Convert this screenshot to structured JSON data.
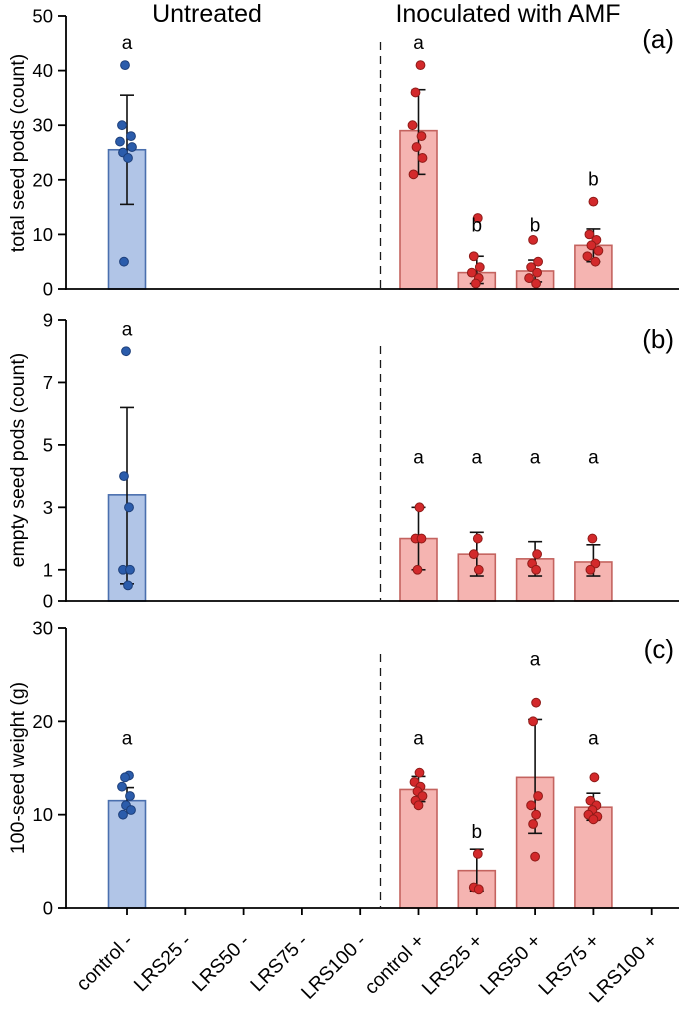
{
  "figure": {
    "headers": [
      {
        "label": "Untreated",
        "color": "#3c69cd"
      },
      {
        "label": "Inoculated with AMF",
        "color": "#e93b31"
      }
    ],
    "categories": [
      "control -",
      "LRS25 -",
      "LRS50 -",
      "LRS75 -",
      "LRS100 -",
      "control +",
      "LRS25 +",
      "LRS50 +",
      "LRS75 +",
      "LRS100 +"
    ],
    "divider_between": [
      "LRS100 -",
      "control +"
    ],
    "colors": {
      "untreated_fill": "#b1c5e7",
      "untreated_edge": "#4a6fae",
      "untreated_point": "#2b5cab",
      "untreated_point_edge": "#1d3f7a",
      "inoculated_fill": "#f5b4b1",
      "inoculated_edge": "#c4635f",
      "inoculated_point": "#d3292b",
      "inoculated_point_edge": "#8f1b18",
      "axis": "#000000",
      "error_bar": "#111111"
    }
  },
  "chart_data": [
    {
      "type": "bar",
      "panel_label": "(a)",
      "ylabel": "total seed pods (count)",
      "xlabel": "",
      "ylim": [
        0,
        50
      ],
      "yticks": [
        0,
        10,
        20,
        30,
        40,
        50
      ],
      "grid": false,
      "bars": [
        {
          "category": "control -",
          "group": "untreated",
          "mean": 25.5,
          "err_low": 15.5,
          "err_high": 35.5,
          "letter": "a",
          "letter_y": 44,
          "points": [
            [
              41,
              -2
            ],
            [
              30,
              -5
            ],
            [
              28,
              4
            ],
            [
              27,
              -7
            ],
            [
              26,
              5
            ],
            [
              25,
              -4
            ],
            [
              24,
              1
            ],
            [
              5,
              -3
            ]
          ]
        },
        {
          "category": "control +",
          "group": "inoculated",
          "mean": 29,
          "err_low": 21,
          "err_high": 36.5,
          "letter": "a",
          "letter_y": 44,
          "points": [
            [
              41,
              2
            ],
            [
              36,
              -3
            ],
            [
              30,
              -6
            ],
            [
              28,
              3
            ],
            [
              26,
              -2
            ],
            [
              24,
              4
            ],
            [
              21,
              -5
            ]
          ]
        },
        {
          "category": "LRS25 +",
          "group": "inoculated",
          "mean": 3,
          "err_low": 1,
          "err_high": 6,
          "letter": "b",
          "letter_y": 10.5,
          "points": [
            [
              13,
              1
            ],
            [
              6,
              -3
            ],
            [
              4,
              3
            ],
            [
              3,
              -5
            ],
            [
              2,
              2
            ],
            [
              1,
              -1
            ]
          ]
        },
        {
          "category": "LRS50 +",
          "group": "inoculated",
          "mean": 3.3,
          "err_low": 1.3,
          "err_high": 5.3,
          "letter": "b",
          "letter_y": 10.5,
          "points": [
            [
              9,
              -2
            ],
            [
              5,
              3
            ],
            [
              4,
              -4
            ],
            [
              3,
              2
            ],
            [
              2,
              -6
            ],
            [
              1,
              1
            ]
          ]
        },
        {
          "category": "LRS75 +",
          "group": "inoculated",
          "mean": 8,
          "err_low": 5,
          "err_high": 11,
          "letter": "b",
          "letter_y": 19,
          "points": [
            [
              16,
              0
            ],
            [
              10,
              -4
            ],
            [
              9,
              3
            ],
            [
              8,
              -2
            ],
            [
              7,
              5
            ],
            [
              6,
              -6
            ],
            [
              5,
              2
            ]
          ]
        }
      ]
    },
    {
      "type": "bar",
      "panel_label": "(b)",
      "ylabel": "empty seed pods (count)",
      "xlabel": "",
      "ylim": [
        0,
        9
      ],
      "yticks": [
        0,
        1,
        3,
        5,
        7,
        9
      ],
      "grid": false,
      "bars": [
        {
          "category": "control -",
          "group": "untreated",
          "mean": 3.4,
          "err_low": 0.55,
          "err_high": 6.2,
          "letter": "a",
          "letter_y": 8.5,
          "points": [
            [
              8,
              -1
            ],
            [
              4,
              -3
            ],
            [
              3,
              2
            ],
            [
              1,
              -4
            ],
            [
              1,
              3
            ],
            [
              0.5,
              1
            ]
          ]
        },
        {
          "category": "control +",
          "group": "inoculated",
          "mean": 2,
          "err_low": 1,
          "err_high": 3,
          "letter": "a",
          "letter_y": 4.4,
          "points": [
            [
              3,
              1
            ],
            [
              2,
              -3
            ],
            [
              2,
              3
            ],
            [
              1,
              -1
            ]
          ]
        },
        {
          "category": "LRS25 +",
          "group": "inoculated",
          "mean": 1.5,
          "err_low": 0.8,
          "err_high": 2.2,
          "letter": "a",
          "letter_y": 4.4,
          "points": [
            [
              2,
              1
            ],
            [
              1.5,
              -3
            ],
            [
              1,
              2
            ]
          ]
        },
        {
          "category": "LRS50 +",
          "group": "inoculated",
          "mean": 1.35,
          "err_low": 0.8,
          "err_high": 1.9,
          "letter": "a",
          "letter_y": 4.4,
          "points": [
            [
              1.5,
              2
            ],
            [
              1.2,
              -3
            ],
            [
              1,
              1
            ]
          ]
        },
        {
          "category": "LRS75 +",
          "group": "inoculated",
          "mean": 1.25,
          "err_low": 0.8,
          "err_high": 1.8,
          "letter": "a",
          "letter_y": 4.4,
          "points": [
            [
              2,
              -1
            ],
            [
              1.2,
              2
            ],
            [
              1,
              -3
            ]
          ]
        }
      ]
    },
    {
      "type": "bar",
      "panel_label": "(c)",
      "ylabel": "100-seed weight (g)",
      "xlabel": "",
      "ylim": [
        0,
        30
      ],
      "yticks": [
        0,
        10,
        20,
        30
      ],
      "grid": false,
      "bars": [
        {
          "category": "control -",
          "group": "untreated",
          "mean": 11.5,
          "err_low": 10.2,
          "err_high": 12.9,
          "letter": "a",
          "letter_y": 17.5,
          "points": [
            [
              14.2,
              2
            ],
            [
              14,
              -2
            ],
            [
              13,
              -5
            ],
            [
              12,
              3
            ],
            [
              11,
              -1
            ],
            [
              10.5,
              4
            ],
            [
              10,
              -4
            ]
          ]
        },
        {
          "category": "control +",
          "group": "inoculated",
          "mean": 12.7,
          "err_low": 11.4,
          "err_high": 14.1,
          "letter": "a",
          "letter_y": 17.5,
          "points": [
            [
              14.5,
              1
            ],
            [
              13.5,
              -4
            ],
            [
              13,
              2
            ],
            [
              12.5,
              -1
            ],
            [
              12,
              4
            ],
            [
              11.5,
              -3
            ],
            [
              11,
              0
            ]
          ]
        },
        {
          "category": "LRS25 +",
          "group": "inoculated",
          "mean": 4,
          "err_low": 1.8,
          "err_high": 6.3,
          "letter": "b",
          "letter_y": 7.5,
          "points": [
            [
              5.8,
              1
            ],
            [
              2.2,
              -3
            ],
            [
              2,
              2
            ]
          ]
        },
        {
          "category": "LRS50 +",
          "group": "inoculated",
          "mean": 14,
          "err_low": 8,
          "err_high": 20.2,
          "letter": "a",
          "letter_y": 26,
          "points": [
            [
              22,
              1
            ],
            [
              20,
              -2
            ],
            [
              12,
              3
            ],
            [
              11,
              -4
            ],
            [
              10,
              1
            ],
            [
              9,
              -2
            ],
            [
              5.5,
              0
            ]
          ]
        },
        {
          "category": "LRS75 +",
          "group": "inoculated",
          "mean": 10.8,
          "err_low": 9.4,
          "err_high": 12.3,
          "letter": "a",
          "letter_y": 17.5,
          "points": [
            [
              14,
              1
            ],
            [
              11.5,
              -3
            ],
            [
              11,
              3
            ],
            [
              10.5,
              -1
            ],
            [
              10,
              -5
            ],
            [
              9.8,
              4
            ],
            [
              9.5,
              0
            ]
          ]
        }
      ]
    }
  ]
}
